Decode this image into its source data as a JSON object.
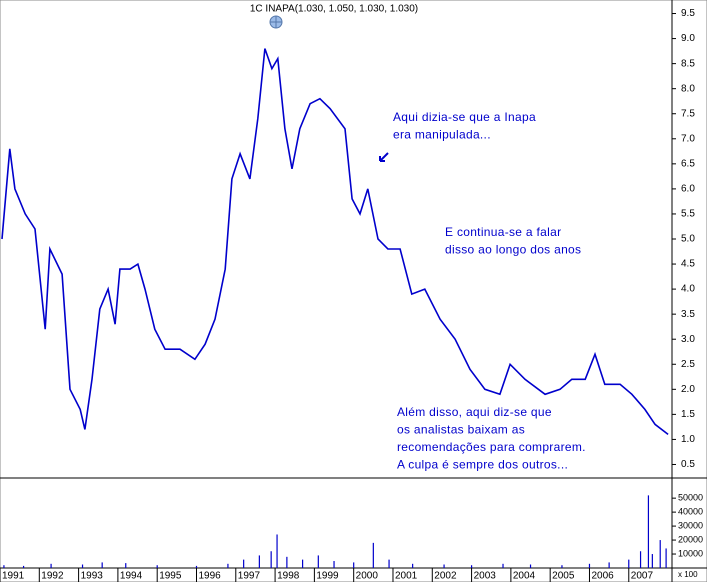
{
  "chart_data": [
    {
      "type": "line",
      "title": "1C INAPA(1.030, 1.050, 1.030, 1.030)",
      "color": "#0000cc",
      "x": [
        1991.05,
        1991.25,
        1991.38,
        1991.64,
        1991.89,
        1992.15,
        1992.27,
        1992.58,
        1992.78,
        1993.04,
        1993.16,
        1993.34,
        1993.54,
        1993.75,
        1993.93,
        1994.05,
        1994.31,
        1994.51,
        1994.69,
        1994.94,
        1995.2,
        1995.58,
        1995.96,
        1996.22,
        1996.47,
        1996.73,
        1996.9,
        1997.11,
        1997.36,
        1997.56,
        1997.74,
        1997.92,
        1998.07,
        1998.25,
        1998.43,
        1998.63,
        1998.89,
        1999.14,
        1999.4,
        1999.78,
        1999.96,
        2000.16,
        2000.36,
        2000.62,
        2000.87,
        2001.18,
        2001.48,
        2001.81,
        2002.2,
        2002.58,
        2002.96,
        2003.34,
        2003.72,
        2003.98,
        2004.36,
        2004.87,
        2005.25,
        2005.55,
        2005.89,
        2006.14,
        2006.39,
        2006.78,
        2007.08,
        2007.41,
        2007.67,
        2008.0
      ],
      "values": [
        5.0,
        6.8,
        6.0,
        5.5,
        5.2,
        3.2,
        4.8,
        4.3,
        2.0,
        1.6,
        1.2,
        2.2,
        3.6,
        4.0,
        3.3,
        4.4,
        4.4,
        4.5,
        4.0,
        3.2,
        2.8,
        2.8,
        2.6,
        2.9,
        3.4,
        4.4,
        6.2,
        6.7,
        6.2,
        7.4,
        8.8,
        8.4,
        8.6,
        7.2,
        6.4,
        7.2,
        7.7,
        7.8,
        7.6,
        7.2,
        5.8,
        5.5,
        6.0,
        5.0,
        4.8,
        4.8,
        3.9,
        4.0,
        3.4,
        3.0,
        2.4,
        2.0,
        1.9,
        2.5,
        2.2,
        1.9,
        2.0,
        2.2,
        2.2,
        2.7,
        2.1,
        2.1,
        1.9,
        1.6,
        1.3,
        1.1
      ],
      "xlim": [
        1991,
        2008.1
      ],
      "ylim": [
        0.25,
        9.75
      ],
      "yticks": [
        9.5,
        {
          "value": 9,
          "label": "9.0"
        },
        8.5,
        {
          "value": 8,
          "label": "8.0"
        },
        7.5,
        {
          "value": 7,
          "label": "7.0"
        },
        6.5,
        {
          "value": 6,
          "label": "6.0"
        },
        5.5,
        {
          "value": 5,
          "label": "5.0"
        },
        4.5,
        {
          "value": 4,
          "label": "4.0"
        },
        3.5,
        {
          "value": 3,
          "label": "3.0"
        },
        2.5,
        {
          "value": 2,
          "label": "2.0"
        },
        1.5,
        {
          "value": 1,
          "label": "1.0"
        },
        0.5
      ],
      "annotations": [
        [
          "Aqui dizia-se que a Inapa",
          "era manipulada..."
        ],
        [
          "E continua-se a falar",
          "disso ao longo dos anos"
        ],
        [
          "Além disso, aqui diz-se que",
          "os analistas baixam as",
          "recomendações para comprarem.",
          "A culpa é sempre dos outros..."
        ]
      ]
    },
    {
      "type": "bar",
      "color": "#0000cc",
      "unit_label": "x 100",
      "x": [
        1991.1,
        1991.6,
        1992.3,
        1993.1,
        1993.6,
        1994.2,
        1995.0,
        1996.0,
        1996.8,
        1997.2,
        1997.6,
        1997.9,
        1998.05,
        1998.3,
        1998.7,
        1999.1,
        1999.5,
        2000.0,
        2000.5,
        2000.9,
        2001.5,
        2002.3,
        2003.0,
        2003.8,
        2004.5,
        2005.3,
        2006.0,
        2006.5,
        2007.0,
        2007.3,
        2007.5,
        2007.6,
        2007.8,
        2007.95
      ],
      "values": [
        2000,
        1500,
        3000,
        2500,
        4000,
        3500,
        2000,
        1500,
        3000,
        6000,
        9000,
        12000,
        24000,
        8000,
        6000,
        9000,
        5000,
        4000,
        18000,
        6000,
        3000,
        2500,
        2000,
        3000,
        2500,
        2000,
        3000,
        4000,
        6000,
        12000,
        52000,
        10000,
        20000,
        14000
      ],
      "xlim": [
        1991,
        2008.1
      ],
      "ylim": [
        0,
        63000
      ],
      "yticks": [
        50000,
        40000,
        30000,
        20000,
        10000
      ],
      "xticks": [
        1991,
        1992,
        1993,
        1994,
        1995,
        1996,
        1997,
        1998,
        1999,
        2000,
        2001,
        2002,
        2003,
        2004,
        2005,
        2006,
        2007
      ]
    }
  ]
}
